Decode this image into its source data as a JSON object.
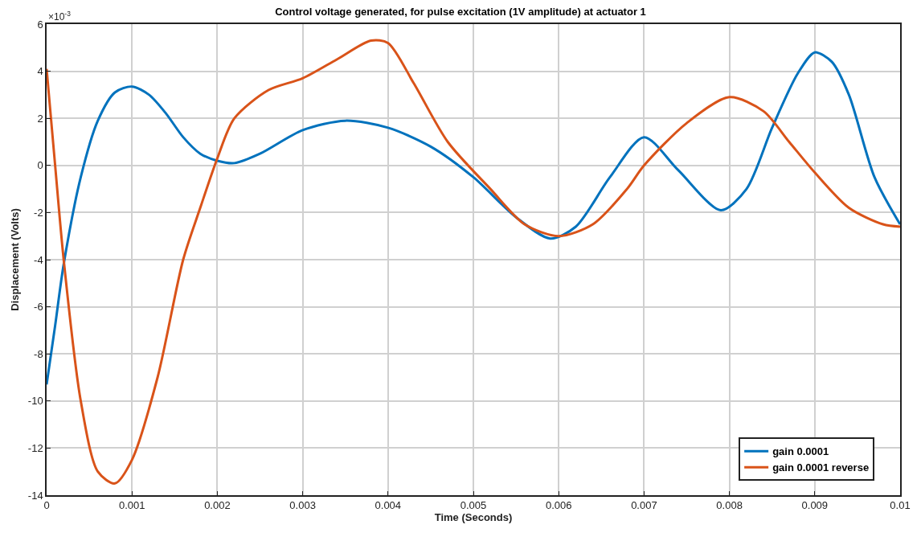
{
  "chart_data": {
    "type": "line",
    "title": "Control voltage generated, for pulse excitation (1V amplitude) at actuator 1",
    "xlabel": "Time (Seconds)",
    "ylabel": "Displacement (Volts)",
    "annotations": [
      "×10$^{-3}$"
    ],
    "series": [
      {
        "name": "gain 0.0001",
        "color": "#0072bd",
        "x": [
          0,
          0.0001,
          0.0002,
          0.0004,
          0.0006,
          0.0008,
          0.001,
          0.0012,
          0.0014,
          0.0016,
          0.0018,
          0.002,
          0.0022,
          0.0025,
          0.003,
          0.0035,
          0.004,
          0.0045,
          0.005,
          0.0055,
          0.0059,
          0.0062,
          0.0066,
          0.007,
          0.0074,
          0.0079,
          0.0082,
          0.0085,
          0.0088,
          0.009,
          0.0092,
          0.0094,
          0.0097,
          0.01
        ],
        "values": [
          -9.3,
          -6.8,
          -4.2,
          -0.5,
          1.9,
          3.1,
          3.35,
          3.0,
          2.2,
          1.2,
          0.5,
          0.2,
          0.1,
          0.5,
          1.5,
          1.9,
          1.6,
          0.8,
          -0.5,
          -2.2,
          -3.1,
          -2.6,
          -0.5,
          1.2,
          -0.2,
          -1.9,
          -1.0,
          1.6,
          3.9,
          4.8,
          4.4,
          3.0,
          -0.5,
          -2.5
        ]
      },
      {
        "name": "gain 0.0001 reverse",
        "color": "#d95319",
        "x": [
          0,
          0.0001,
          0.0002,
          0.0004,
          0.0006,
          0.0008,
          0.001,
          0.0013,
          0.0016,
          0.0018,
          0.002,
          0.0022,
          0.0026,
          0.003,
          0.0034,
          0.0038,
          0.004,
          0.0043,
          0.0047,
          0.0052,
          0.0056,
          0.006,
          0.0064,
          0.0068,
          0.007,
          0.0075,
          0.008,
          0.0084,
          0.0087,
          0.009,
          0.0094,
          0.0098,
          0.01
        ],
        "values": [
          4.1,
          0,
          -4,
          -10,
          -13,
          -13.5,
          -12.5,
          -9,
          -4,
          -1.8,
          0.3,
          2,
          3.2,
          3.7,
          4.5,
          5.3,
          5.2,
          3.5,
          1,
          -1,
          -2.5,
          -3,
          -2.5,
          -1,
          0,
          1.8,
          2.9,
          2.3,
          1,
          -0.3,
          -1.8,
          -2.5,
          -2.6
        ]
      }
    ],
    "xlim": [
      0,
      0.01
    ],
    "xticks": [
      0,
      0.001,
      0.002,
      0.003,
      0.004,
      0.005,
      0.006,
      0.007,
      0.008,
      0.009,
      0.01
    ],
    "ylim": [
      -14,
      6
    ],
    "yticks": [
      -14,
      -12,
      -10,
      -8,
      -6,
      -4,
      -2,
      0,
      2,
      4,
      6
    ],
    "grid": true,
    "legend": "bottom right",
    "marker": "none",
    "line_style": "solid"
  }
}
